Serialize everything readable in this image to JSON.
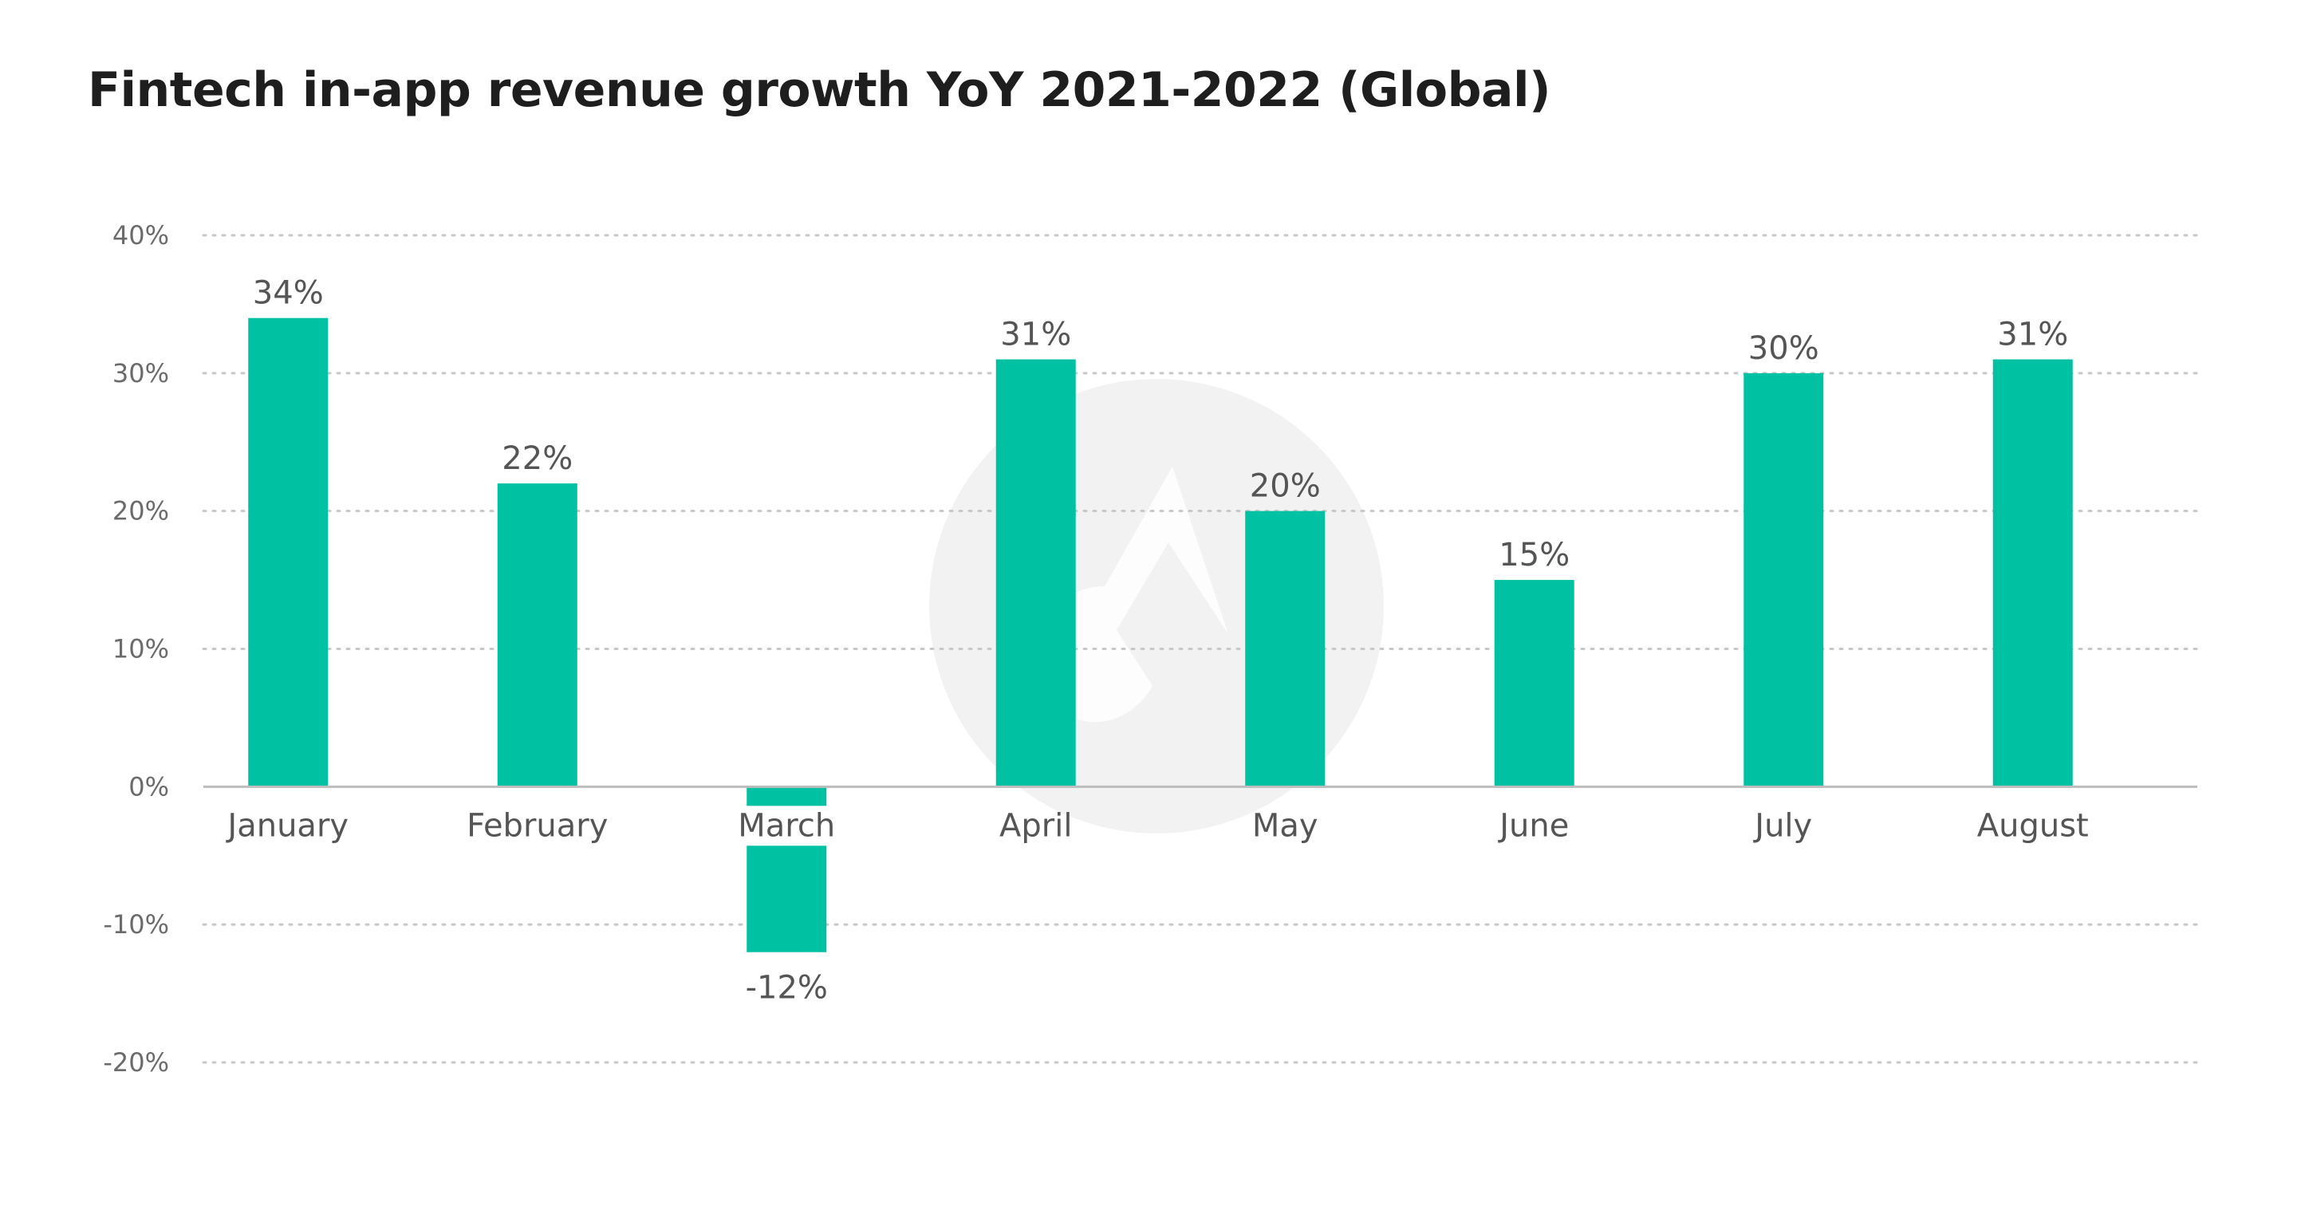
{
  "chart_data": {
    "type": "bar",
    "title": "Fintech in-app revenue growth YoY 2021-2022 (Global)",
    "xlabel": "",
    "ylabel": "",
    "categories": [
      "January",
      "February",
      "March",
      "April",
      "May",
      "June",
      "July",
      "August"
    ],
    "values": [
      34,
      22,
      -12,
      31,
      20,
      15,
      30,
      31
    ],
    "data_labels": [
      "34%",
      "22%",
      "-12%",
      "31%",
      "20%",
      "15%",
      "30%",
      "31%"
    ],
    "ylim": [
      -20,
      40
    ],
    "yticks": [
      -20,
      -10,
      0,
      10,
      20,
      30,
      40
    ],
    "ytick_labels": [
      "-20%",
      "-10%",
      "0%",
      "10%",
      "20%",
      "30%",
      "40%"
    ],
    "grid": true,
    "legend": "none",
    "colors": {
      "bar": "#00c2a2",
      "grid": "#c8c8c8",
      "axis": "#bdbdbd",
      "watermark": "#f2f2f2",
      "watermark_mark": "#ffffff"
    }
  }
}
